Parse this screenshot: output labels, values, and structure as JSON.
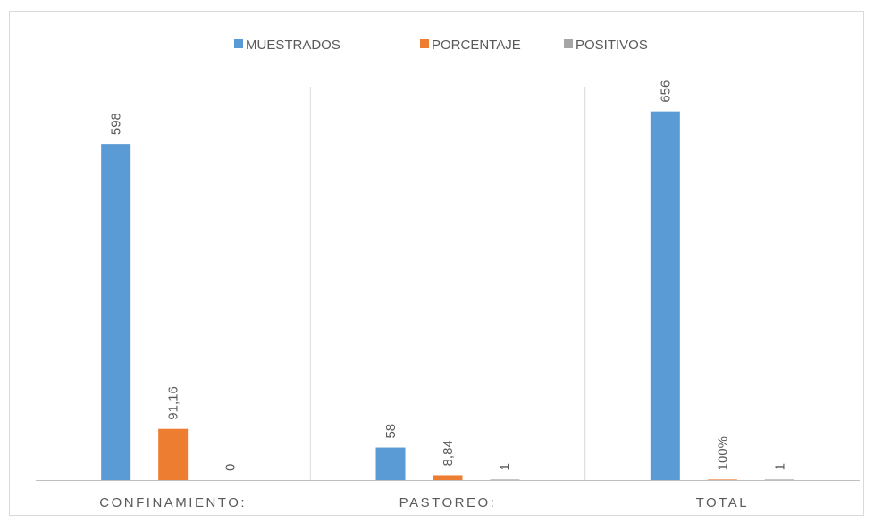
{
  "chart_data": {
    "type": "bar",
    "categories": [
      "CONFINAMIENTO:",
      "PASTOREO:",
      "TOTAL"
    ],
    "series": [
      {
        "name": "MUESTRADOS",
        "color": "#5b9bd5",
        "values": [
          598,
          58,
          656
        ]
      },
      {
        "name": "PORCENTAJE",
        "color": "#ed7d31",
        "values": [
          91.16,
          8.84,
          1
        ],
        "value_labels": [
          "91,16",
          "8,84",
          "100%"
        ]
      },
      {
        "name": "POSITIVOS",
        "color": "#a5a5a5",
        "values": [
          0,
          1,
          1
        ]
      }
    ],
    "ylim": [
      0,
      700
    ],
    "legend": "top"
  }
}
